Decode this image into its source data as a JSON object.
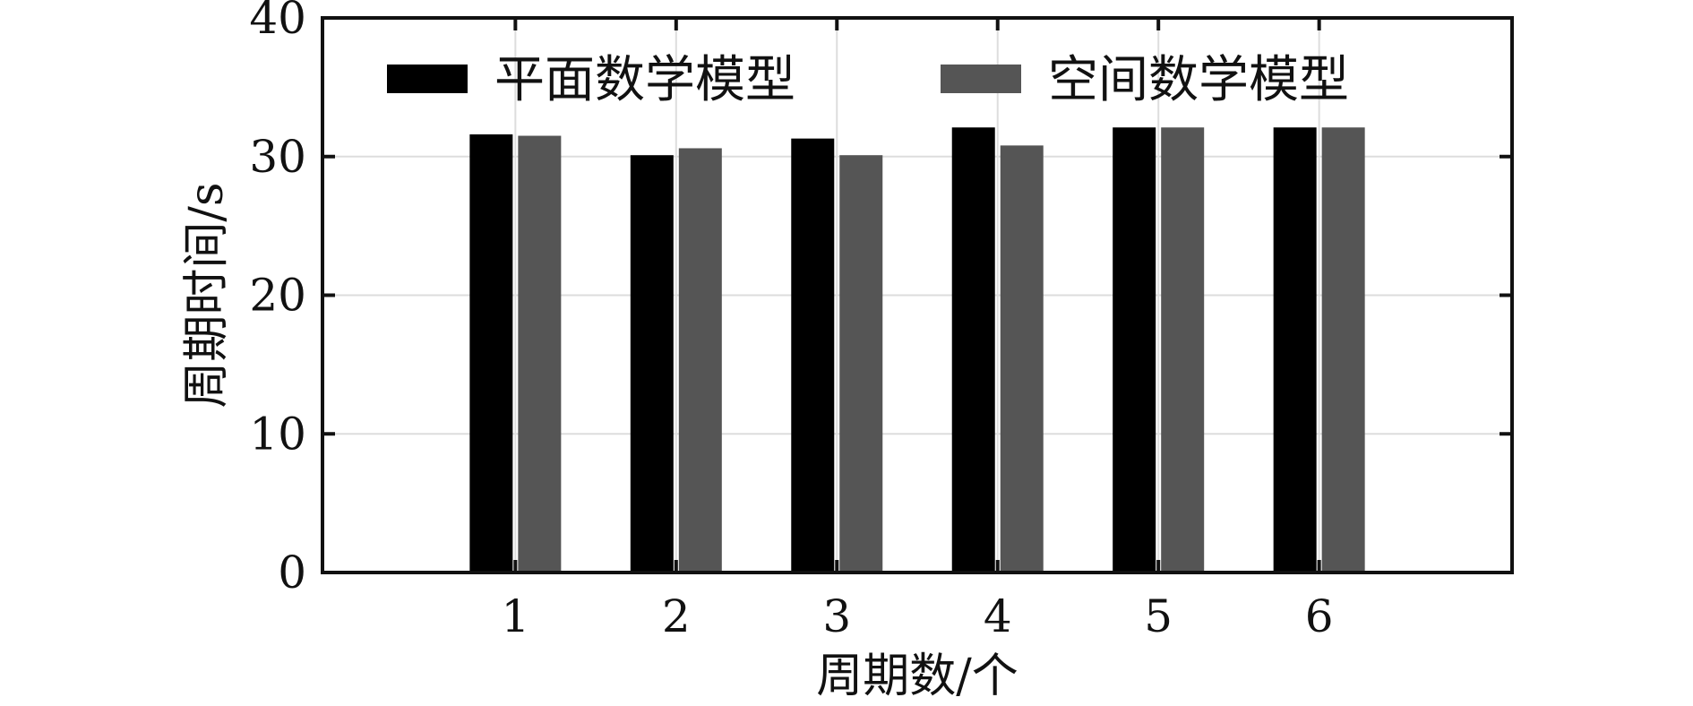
{
  "chart_data": {
    "type": "bar",
    "title": "",
    "xlabel": "周期数/个",
    "ylabel": "周期时间/s",
    "categories": [
      "1",
      "2",
      "3",
      "4",
      "5",
      "6"
    ],
    "series": [
      {
        "name": "平面数学模型",
        "color": "#000000",
        "values": [
          31.6,
          30.1,
          31.3,
          32.1,
          32.1,
          32.1
        ]
      },
      {
        "name": "空间数学模型",
        "color": "#555555",
        "values": [
          31.5,
          30.6,
          30.1,
          30.8,
          32.1,
          32.1
        ]
      }
    ],
    "ylim": [
      0,
      40
    ],
    "yticks": [
      "0",
      "10",
      "20",
      "30",
      "40"
    ],
    "grid": true,
    "legend_position": "top"
  }
}
